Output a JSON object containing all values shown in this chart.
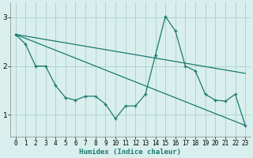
{
  "xlabel": "Humidex (Indice chaleur)",
  "xlim": [
    -0.5,
    23.5
  ],
  "ylim": [
    0.55,
    3.3
  ],
  "yticks": [
    1,
    2,
    3
  ],
  "xticks": [
    0,
    1,
    2,
    3,
    4,
    5,
    6,
    7,
    8,
    9,
    10,
    11,
    12,
    13,
    14,
    15,
    16,
    17,
    18,
    19,
    20,
    21,
    22,
    23
  ],
  "bg_color": "#d9efee",
  "grid_color": "#aed4d0",
  "line_color": "#1a7a6e",
  "line1_x": [
    0,
    1,
    2,
    3,
    4,
    5,
    6,
    7,
    8,
    9,
    10,
    11,
    12,
    13,
    14,
    15,
    16,
    17,
    18,
    19,
    20,
    21,
    22,
    23
  ],
  "line1_y": [
    2.65,
    2.45,
    2.0,
    2.0,
    1.6,
    1.35,
    1.3,
    1.38,
    1.38,
    1.22,
    0.92,
    1.18,
    1.18,
    1.42,
    2.22,
    3.02,
    2.72,
    2.0,
    1.9,
    1.42,
    1.3,
    1.28,
    1.42,
    0.78
  ],
  "line2_x": [
    0,
    23
  ],
  "line2_y": [
    2.65,
    1.85
  ],
  "line3_x": [
    0,
    23
  ],
  "line3_y": [
    2.65,
    0.78
  ]
}
